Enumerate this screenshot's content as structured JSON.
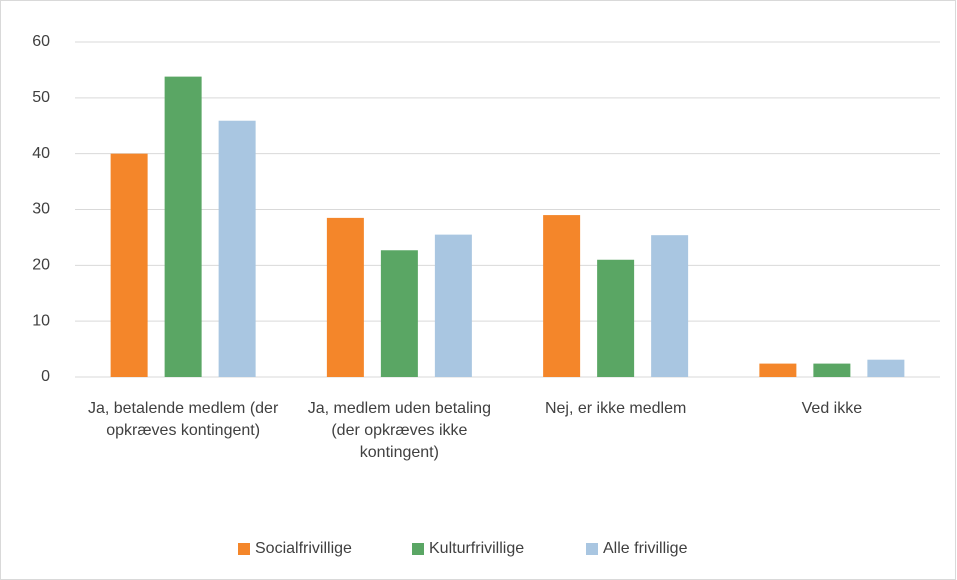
{
  "chart_data": {
    "type": "bar",
    "categories": [
      "Ja, betalende medlem (der opkræves kontingent)",
      "Ja, medlem uden betaling (der opkræves ikke kontingent)",
      "Nej, er ikke medlem",
      "Ved ikke"
    ],
    "series": [
      {
        "name": "Socialfrivillige",
        "color": "#f4862a",
        "values": [
          40.0,
          28.5,
          29.0,
          2.4
        ]
      },
      {
        "name": "Kulturfrivillige",
        "color": "#5aa664",
        "values": [
          53.8,
          22.7,
          21.0,
          2.4
        ]
      },
      {
        "name": "Alle frivillige",
        "color": "#a9c6e1",
        "values": [
          45.9,
          25.5,
          25.4,
          3.1
        ]
      }
    ],
    "ylim": [
      0,
      60
    ],
    "yticks": [
      0,
      10,
      20,
      30,
      40,
      50,
      60
    ],
    "grid": true,
    "legend": "bottom"
  }
}
